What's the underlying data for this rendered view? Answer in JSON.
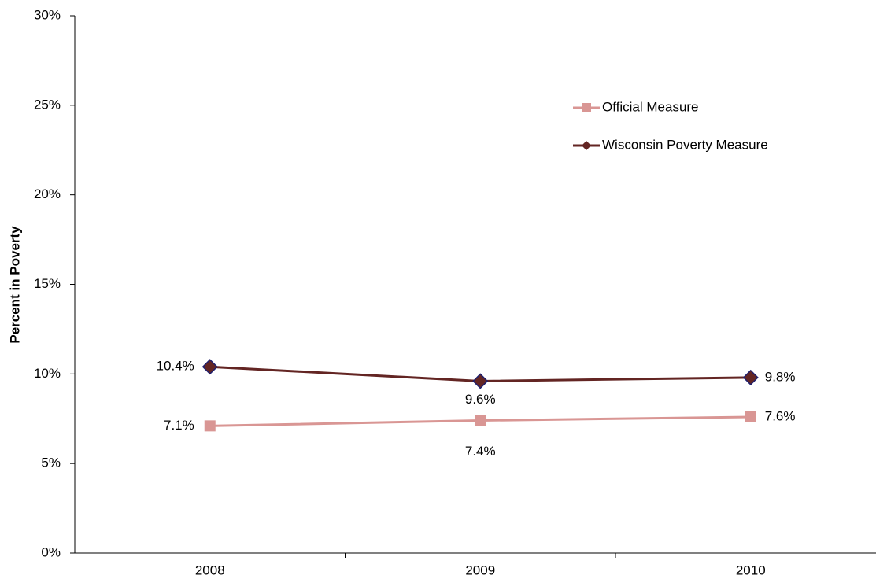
{
  "chart_data": {
    "type": "line",
    "y_label": "Percent in Poverty",
    "categories": [
      "2008",
      "2009",
      "2010"
    ],
    "series": [
      {
        "name": "Official Measure",
        "color": "#d99694",
        "marker": "square",
        "values": [
          7.1,
          7.4,
          7.6
        ],
        "value_labels": [
          "7.1%",
          "7.4%",
          "7.6%"
        ]
      },
      {
        "name": "Wisconsin Poverty Measure",
        "color": "#632523",
        "marker": "diamond",
        "values": [
          10.4,
          9.6,
          9.8
        ],
        "value_labels": [
          "10.4%",
          "9.6%",
          "9.8%"
        ]
      }
    ],
    "ylim": [
      0,
      30
    ],
    "yticks": [
      {
        "value": 0,
        "label": "0%"
      },
      {
        "value": 5,
        "label": "5%"
      },
      {
        "value": 10,
        "label": "10%"
      },
      {
        "value": 15,
        "label": "15%"
      },
      {
        "value": 20,
        "label": "20%"
      },
      {
        "value": 25,
        "label": "25%"
      },
      {
        "value": 30,
        "label": "30%"
      }
    ],
    "grid": false
  }
}
